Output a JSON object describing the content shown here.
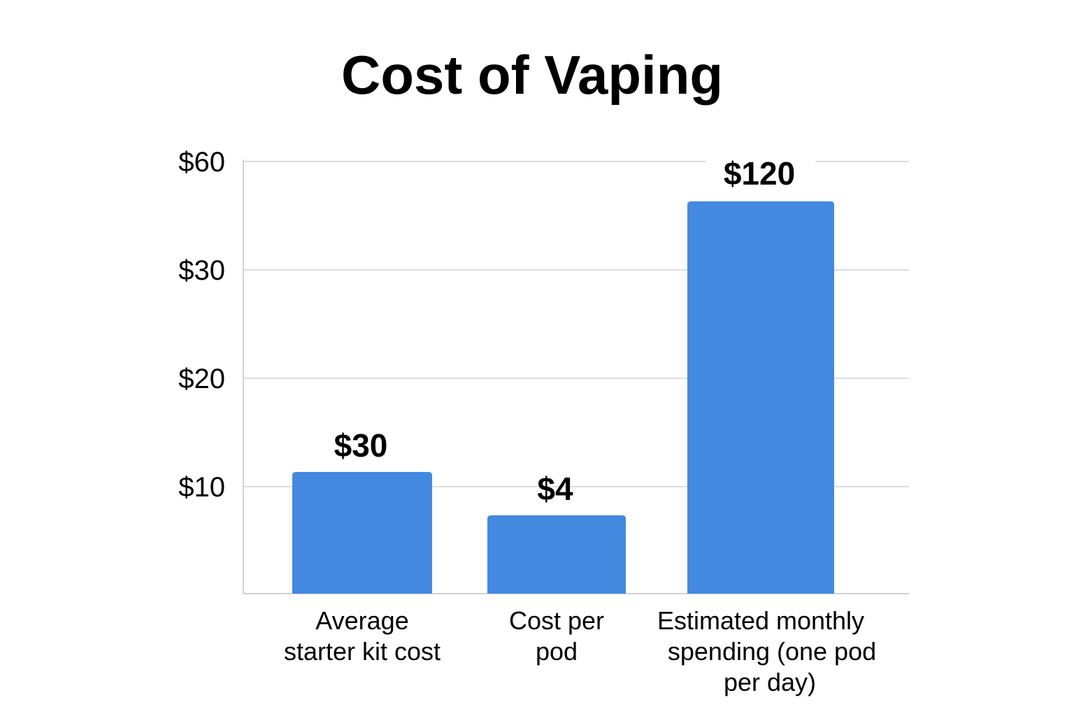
{
  "chart_data": {
    "type": "bar",
    "title": "Cost of Vaping",
    "categories": [
      [
        "Average",
        "starter kit cost"
      ],
      [
        "Cost per",
        "pod"
      ],
      [
        "Estimated monthly",
        "spending (one pod",
        "per day)"
      ]
    ],
    "values": [
      30,
      4,
      120
    ],
    "value_labels": [
      "$30",
      "$4",
      "$120"
    ],
    "y_ticks": [
      "$60",
      "$30",
      "$20",
      "$10"
    ],
    "grid": true,
    "bar_color": "#4489E0"
  }
}
